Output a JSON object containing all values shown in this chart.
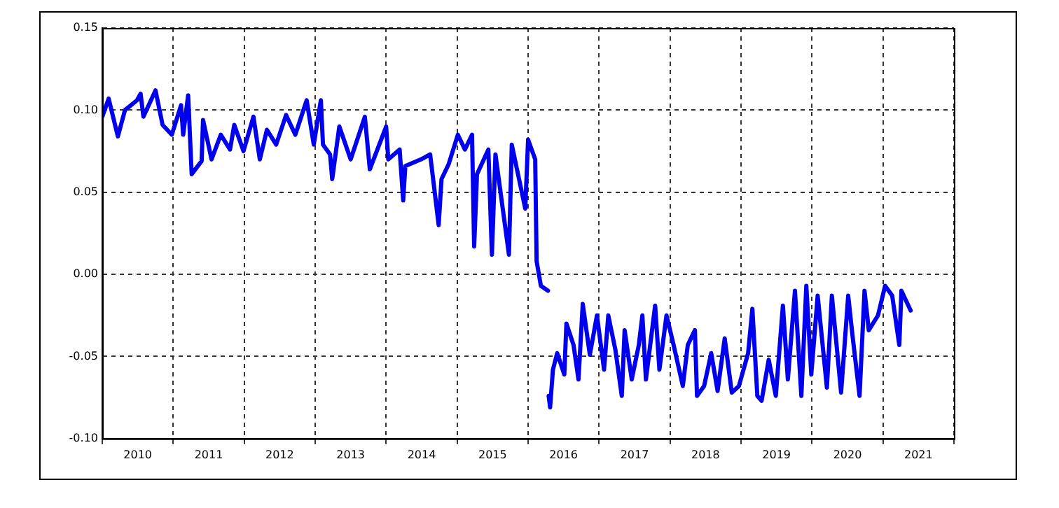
{
  "chart_data": {
    "type": "line",
    "xlim": [
      2010,
      2022
    ],
    "ylim": [
      -0.1,
      0.15
    ],
    "xticks": [
      {
        "value": 2010,
        "label": null
      },
      {
        "value": 2010.5,
        "label": "2010"
      },
      {
        "value": 2011,
        "label": null
      },
      {
        "value": 2011.5,
        "label": "2011"
      },
      {
        "value": 2012,
        "label": null
      },
      {
        "value": 2012.5,
        "label": "2012"
      },
      {
        "value": 2013,
        "label": null
      },
      {
        "value": 2013.5,
        "label": "2013"
      },
      {
        "value": 2014,
        "label": null
      },
      {
        "value": 2014.5,
        "label": "2014"
      },
      {
        "value": 2015,
        "label": null
      },
      {
        "value": 2015.5,
        "label": "2015"
      },
      {
        "value": 2016,
        "label": null
      },
      {
        "value": 2016.5,
        "label": "2016"
      },
      {
        "value": 2017,
        "label": null
      },
      {
        "value": 2017.5,
        "label": "2017"
      },
      {
        "value": 2018,
        "label": null
      },
      {
        "value": 2018.5,
        "label": "2018"
      },
      {
        "value": 2019,
        "label": null
      },
      {
        "value": 2019.5,
        "label": "2019"
      },
      {
        "value": 2020,
        "label": null
      },
      {
        "value": 2020.5,
        "label": "2020"
      },
      {
        "value": 2021,
        "label": null
      },
      {
        "value": 2021.5,
        "label": "2021"
      },
      {
        "value": 2022,
        "label": null
      }
    ],
    "yticks": [
      {
        "value": -0.1,
        "label": "-0.10"
      },
      {
        "value": -0.05,
        "label": "-0.05"
      },
      {
        "value": 0,
        "label": "0.00"
      },
      {
        "value": 0.05,
        "label": "0.05"
      },
      {
        "value": 0.1,
        "label": "0.10"
      },
      {
        "value": 0.15,
        "label": "0.15"
      }
    ],
    "grid": true,
    "legend": false,
    "marker": "none",
    "line_style": "solid",
    "series": [
      {
        "color": "#0000ee",
        "x": [
          2010.0,
          2010.09,
          2010.22,
          2010.32,
          2010.49,
          2010.54,
          2010.58,
          2010.75,
          2010.85,
          2010.98,
          2011.11,
          2011.14,
          2011.21,
          2011.26,
          2011.4,
          2011.42,
          2011.54,
          2011.67,
          2011.8,
          2011.86,
          2011.99,
          2012.13,
          2012.22,
          2012.32,
          2012.45,
          2012.59,
          2012.72,
          2012.88,
          2012.98,
          2013.08,
          2013.11,
          2013.21,
          2013.24,
          2013.34,
          2013.5,
          2013.7,
          2013.77,
          2014.0,
          2014.03,
          2014.19,
          2014.24,
          2014.27,
          2014.49,
          2014.62,
          2014.74,
          2014.78,
          2014.88,
          2015.01,
          2015.11,
          2015.21,
          2015.24,
          2015.28,
          2015.44,
          2015.49,
          2015.54,
          2015.73,
          2015.77,
          2015.96,
          2016.0,
          2016.1,
          2016.12,
          2016.18,
          2016.28,
          2016.285,
          2016.29,
          2016.31,
          2016.35,
          2016.41,
          2016.51,
          2016.54,
          2016.64,
          2016.71,
          2016.77,
          2016.87,
          2016.97,
          2017.07,
          2017.13,
          2017.23,
          2017.32,
          2017.36,
          2017.46,
          2017.56,
          2017.61,
          2017.66,
          2017.79,
          2017.85,
          2017.95,
          2018.05,
          2018.18,
          2018.25,
          2018.35,
          2018.38,
          2018.48,
          2018.58,
          2018.67,
          2018.77,
          2018.87,
          2018.97,
          2019.1,
          2019.16,
          2019.23,
          2019.29,
          2019.39,
          2019.49,
          2019.59,
          2019.66,
          2019.76,
          2019.85,
          2019.92,
          2019.99,
          2020.08,
          2020.21,
          2020.28,
          2020.41,
          2020.51,
          2020.57,
          2020.67,
          2020.74,
          2020.8,
          2020.93,
          2021.03,
          2021.13,
          2021.23,
          2021.26,
          2021.39
        ],
        "values": [
          0.096,
          0.107,
          0.084,
          0.1,
          0.106,
          0.11,
          0.096,
          0.112,
          0.091,
          0.085,
          0.103,
          0.085,
          0.109,
          0.061,
          0.069,
          0.094,
          0.07,
          0.085,
          0.076,
          0.091,
          0.075,
          0.096,
          0.07,
          0.088,
          0.079,
          0.097,
          0.085,
          0.106,
          0.079,
          0.106,
          0.079,
          0.073,
          0.058,
          0.09,
          0.07,
          0.096,
          0.064,
          0.09,
          0.07,
          0.076,
          0.045,
          0.066,
          0.07,
          0.073,
          0.03,
          0.058,
          0.067,
          0.085,
          0.076,
          0.085,
          0.017,
          0.061,
          0.076,
          0.012,
          0.073,
          0.012,
          0.079,
          0.04,
          0.082,
          0.07,
          0.008,
          -0.007,
          -0.01,
          null,
          -0.074,
          -0.081,
          -0.058,
          -0.048,
          -0.061,
          -0.03,
          -0.043,
          -0.064,
          -0.018,
          -0.049,
          -0.025,
          -0.058,
          -0.025,
          -0.046,
          -0.074,
          -0.034,
          -0.064,
          -0.043,
          -0.025,
          -0.064,
          -0.019,
          -0.058,
          -0.025,
          -0.043,
          -0.068,
          -0.043,
          -0.034,
          -0.074,
          -0.068,
          -0.048,
          -0.071,
          -0.039,
          -0.072,
          -0.068,
          -0.048,
          -0.021,
          -0.074,
          -0.077,
          -0.052,
          -0.074,
          -0.019,
          -0.064,
          -0.01,
          -0.074,
          -0.007,
          -0.061,
          -0.013,
          -0.069,
          -0.013,
          -0.072,
          -0.013,
          -0.037,
          -0.074,
          -0.01,
          -0.034,
          -0.025,
          -0.007,
          -0.013,
          -0.043,
          -0.01,
          -0.022
        ]
      }
    ]
  }
}
